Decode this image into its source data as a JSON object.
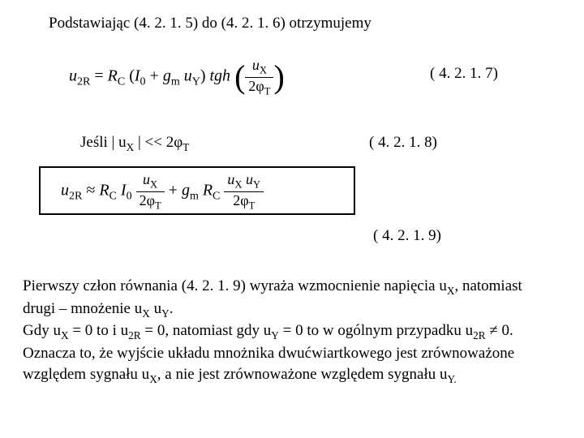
{
  "line1": "Podstawiając (4. 2. 1. 5) do (4. 2. 1. 6) otrzymujemy",
  "eqnum47": "( 4. 2. 1. 7)",
  "eqnum48": "( 4. 2. 1. 8)",
  "eqnum49": "( 4. 2. 1. 9)",
  "eq47": {
    "lhs_var": "u",
    "lhs_sub": "2R",
    "rc": "R",
    "rc_sub": "C",
    "i0": "I",
    "i0_sub": "0",
    "gm": "g",
    "gm_sub": "m",
    "uy": "u",
    "uy_sub": "Y",
    "tgh": "tgh",
    "ux": "u",
    "ux_sub": "X",
    "phit": "2φ",
    "phit_sub": "T"
  },
  "cond": {
    "prefix": "Jeśli | u",
    "sub": "X",
    "mid": " | << 2φ",
    "sub2": "T"
  },
  "eq49": {
    "lhs_var": "u",
    "lhs_sub": "2R",
    "approx": "≈",
    "rc": "R",
    "rc_sub": "C",
    "i0": "I",
    "i0_sub": "0",
    "ux": "u",
    "ux_sub": "X",
    "phit": "2φ",
    "phit_sub": "T",
    "gm": "g",
    "gm_sub": "m",
    "uy": "u",
    "uy_sub": "Y"
  },
  "para": {
    "t1": "Pierwszy człon równania (4. 2. 1. 9) wyraża wzmocnienie napięcia u",
    "s1": "X",
    "t2": ", natomiast drugi – mnożenie u",
    "s2": "X",
    "t3": " u",
    "s3": "Y",
    "t4": ".",
    "t5": "Gdy u",
    "s5": "X",
    "t6": " = 0 to i u",
    "s6": "2R",
    "t7": " = 0, natomiast gdy u",
    "s7": "Y",
    "t8": " = 0 to w ogólnym przypadku u",
    "s8": "2R",
    "t9": " ≠ 0. Oznacza to, że wyjście układu mnożnika dwućwiartkowego jest zrównoważone względem sygnału u",
    "s9": "X",
    "t10": ", a nie jest zrównoważone względem sygnału u",
    "s10": "Y.",
    "t11": ""
  }
}
